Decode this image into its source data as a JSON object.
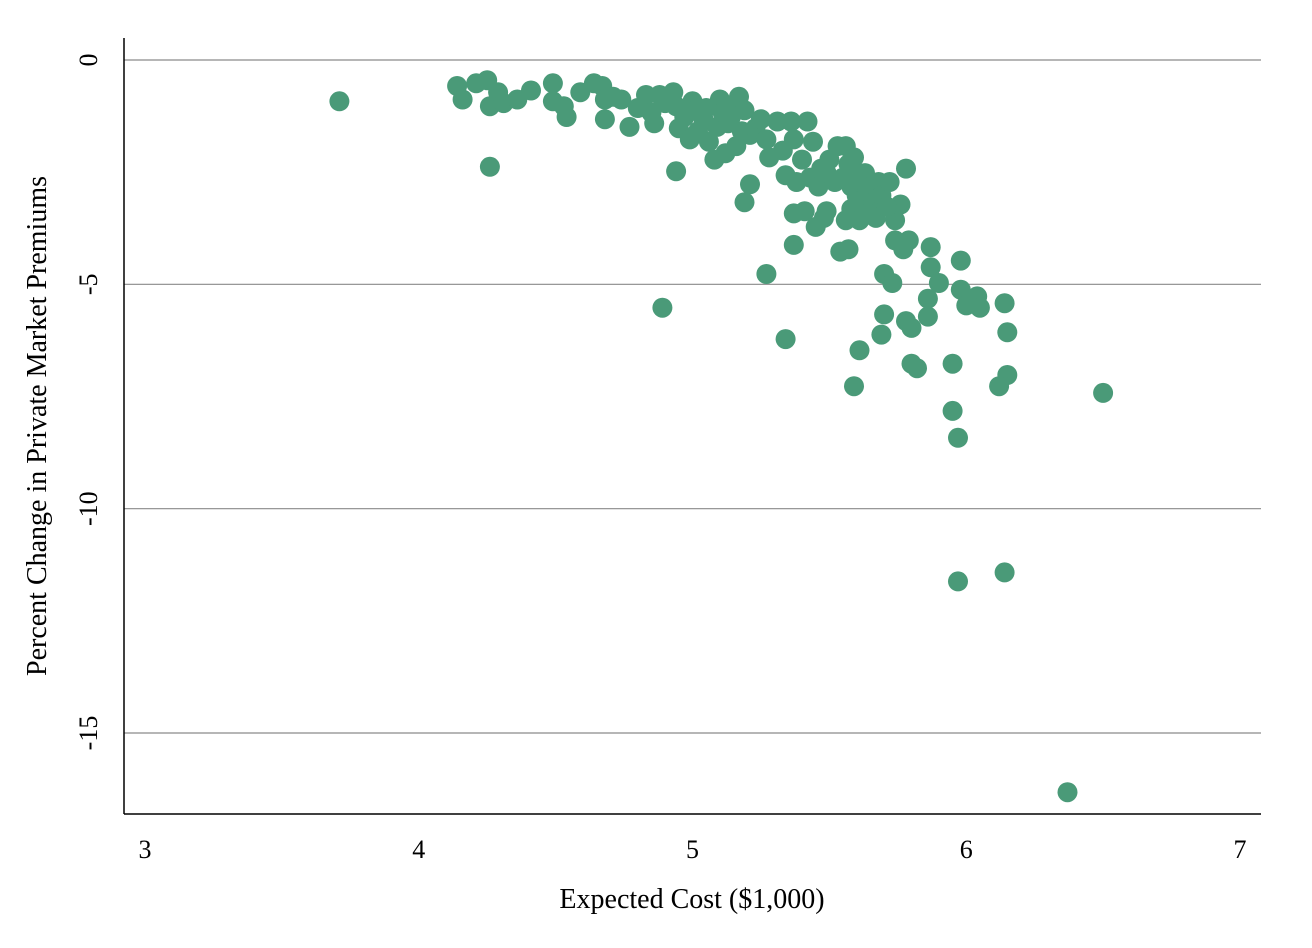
{
  "chart_data": {
    "type": "scatter",
    "title": "",
    "xlabel": "Expected Cost ($1,000)",
    "ylabel": "Percent Change in Private Market Premiums",
    "xlim": [
      3,
      7
    ],
    "ylim": [
      -16.8,
      0.5
    ],
    "x_ticks": [
      "3",
      "4",
      "5",
      "6",
      "7"
    ],
    "y_ticks": [
      "0",
      "-5",
      "-10",
      "-15"
    ],
    "grid": "horizontal",
    "marker_color": "#4a9a78",
    "series": [
      {
        "points": [
          [
            3.71,
            -0.92
          ],
          [
            4.14,
            -0.58
          ],
          [
            4.16,
            -0.88
          ],
          [
            4.21,
            -0.52
          ],
          [
            4.25,
            -0.45
          ],
          [
            4.26,
            -1.03
          ],
          [
            4.29,
            -0.72
          ],
          [
            4.31,
            -0.96
          ],
          [
            4.36,
            -0.88
          ],
          [
            4.41,
            -0.68
          ],
          [
            4.26,
            -2.38
          ],
          [
            4.49,
            -0.52
          ],
          [
            4.49,
            -0.92
          ],
          [
            4.53,
            -1.03
          ],
          [
            4.54,
            -1.27
          ],
          [
            4.59,
            -0.72
          ],
          [
            4.64,
            -0.52
          ],
          [
            4.67,
            -0.58
          ],
          [
            4.68,
            -0.88
          ],
          [
            4.68,
            -1.32
          ],
          [
            4.71,
            -0.82
          ],
          [
            4.74,
            -0.88
          ],
          [
            4.77,
            -1.49
          ],
          [
            4.8,
            -1.07
          ],
          [
            4.83,
            -0.78
          ],
          [
            4.85,
            -1.17
          ],
          [
            4.86,
            -1.41
          ],
          [
            4.88,
            -0.78
          ],
          [
            4.9,
            -0.96
          ],
          [
            4.93,
            -0.72
          ],
          [
            4.94,
            -1.03
          ],
          [
            4.95,
            -1.52
          ],
          [
            4.97,
            -1.27
          ],
          [
            4.99,
            -1.77
          ],
          [
            5.0,
            -0.92
          ],
          [
            5.01,
            -1.12
          ],
          [
            5.02,
            -1.59
          ],
          [
            5.04,
            -1.32
          ],
          [
            5.05,
            -1.07
          ],
          [
            5.06,
            -1.82
          ],
          [
            5.08,
            -2.22
          ],
          [
            5.09,
            -1.49
          ],
          [
            5.1,
            -0.88
          ],
          [
            5.11,
            -1.17
          ],
          [
            5.12,
            -2.08
          ],
          [
            5.13,
            -1.41
          ],
          [
            5.14,
            -1.27
          ],
          [
            5.15,
            -1.07
          ],
          [
            5.16,
            -1.92
          ],
          [
            5.17,
            -0.82
          ],
          [
            5.18,
            -1.59
          ],
          [
            5.19,
            -1.12
          ],
          [
            5.21,
            -1.67
          ],
          [
            5.23,
            -1.52
          ],
          [
            5.25,
            -1.32
          ],
          [
            5.27,
            -1.77
          ],
          [
            5.28,
            -2.17
          ],
          [
            5.31,
            -1.37
          ],
          [
            5.33,
            -2.02
          ],
          [
            5.34,
            -2.57
          ],
          [
            5.36,
            -1.37
          ],
          [
            5.37,
            -1.77
          ],
          [
            5.38,
            -2.72
          ],
          [
            5.4,
            -2.22
          ],
          [
            5.42,
            -1.37
          ],
          [
            5.43,
            -2.62
          ],
          [
            5.44,
            -1.82
          ],
          [
            5.46,
            -2.82
          ],
          [
            5.47,
            -2.42
          ],
          [
            5.49,
            -2.52
          ],
          [
            5.5,
            -2.22
          ],
          [
            5.52,
            -2.72
          ],
          [
            5.53,
            -1.92
          ],
          [
            5.55,
            -2.62
          ],
          [
            5.56,
            -1.92
          ],
          [
            5.57,
            -2.32
          ],
          [
            5.58,
            -2.82
          ],
          [
            5.59,
            -2.17
          ],
          [
            5.6,
            -3.02
          ],
          [
            5.61,
            -2.67
          ],
          [
            5.62,
            -3.12
          ],
          [
            5.63,
            -2.52
          ],
          [
            5.64,
            -2.92
          ],
          [
            5.65,
            -2.82
          ],
          [
            5.66,
            -3.17
          ],
          [
            5.68,
            -2.72
          ],
          [
            5.69,
            -3.02
          ],
          [
            5.72,
            -2.72
          ],
          [
            5.74,
            -3.57
          ],
          [
            5.76,
            -3.22
          ],
          [
            5.78,
            -2.42
          ],
          [
            4.94,
            -2.48
          ],
          [
            5.19,
            -3.17
          ],
          [
            5.21,
            -2.77
          ],
          [
            5.37,
            -3.42
          ],
          [
            5.41,
            -3.37
          ],
          [
            5.45,
            -3.72
          ],
          [
            5.48,
            -3.52
          ],
          [
            5.49,
            -3.37
          ],
          [
            5.56,
            -3.57
          ],
          [
            5.58,
            -3.32
          ],
          [
            5.61,
            -3.57
          ],
          [
            5.64,
            -3.42
          ],
          [
            5.67,
            -3.52
          ],
          [
            5.71,
            -3.27
          ],
          [
            5.74,
            -4.02
          ],
          [
            5.77,
            -4.22
          ],
          [
            5.79,
            -4.02
          ],
          [
            5.37,
            -4.12
          ],
          [
            5.54,
            -4.27
          ],
          [
            5.57,
            -4.22
          ],
          [
            5.87,
            -4.17
          ],
          [
            5.98,
            -4.47
          ],
          [
            5.87,
            -4.62
          ],
          [
            5.9,
            -4.97
          ],
          [
            5.27,
            -4.77
          ],
          [
            5.7,
            -4.77
          ],
          [
            5.73,
            -4.97
          ],
          [
            4.89,
            -5.52
          ],
          [
            5.98,
            -5.12
          ],
          [
            5.86,
            -5.32
          ],
          [
            6.0,
            -5.47
          ],
          [
            6.04,
            -5.27
          ],
          [
            6.05,
            -5.52
          ],
          [
            6.14,
            -5.42
          ],
          [
            5.86,
            -5.72
          ],
          [
            5.7,
            -5.67
          ],
          [
            5.78,
            -5.82
          ],
          [
            5.8,
            -5.97
          ],
          [
            5.34,
            -6.22
          ],
          [
            5.69,
            -6.12
          ],
          [
            6.15,
            -6.07
          ],
          [
            5.61,
            -6.47
          ],
          [
            5.8,
            -6.77
          ],
          [
            5.82,
            -6.87
          ],
          [
            5.95,
            -6.77
          ],
          [
            6.15,
            -7.02
          ],
          [
            6.12,
            -7.27
          ],
          [
            5.59,
            -7.27
          ],
          [
            6.5,
            -7.42
          ],
          [
            5.95,
            -7.82
          ],
          [
            5.97,
            -8.42
          ],
          [
            5.97,
            -11.62
          ],
          [
            6.14,
            -11.42
          ],
          [
            6.37,
            -16.32
          ]
        ]
      }
    ]
  }
}
